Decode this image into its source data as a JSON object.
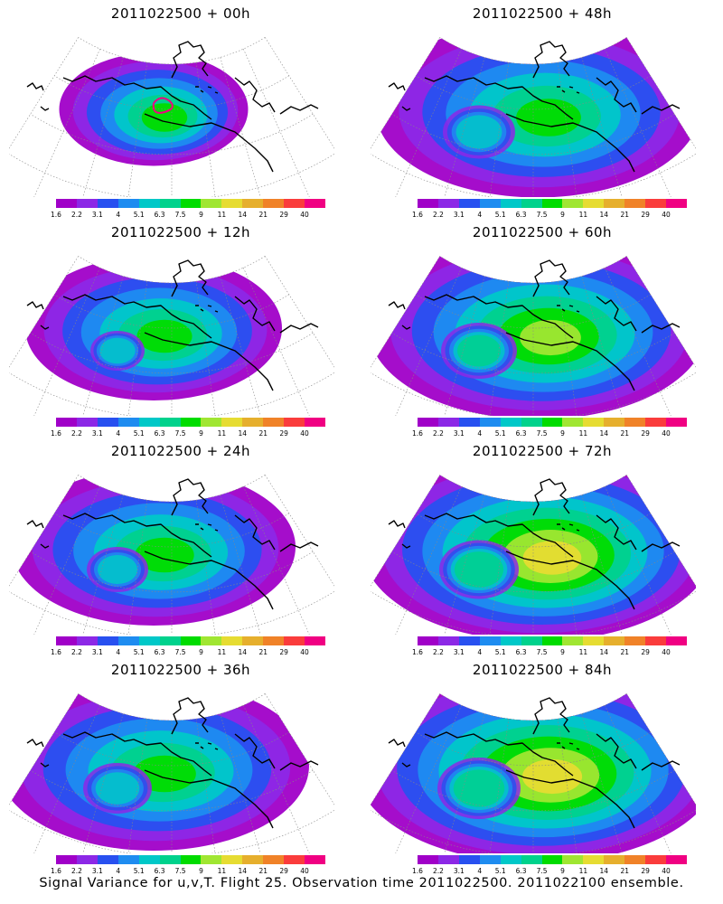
{
  "caption": "Signal Variance for u,v,T. Flight 25. Observation time 2011022500. 2011022100 ensemble.",
  "colorbar": {
    "colors": [
      "#a000c8",
      "#8c28e6",
      "#2850f0",
      "#1e8cf0",
      "#00c8c8",
      "#00d28c",
      "#00dc00",
      "#a0e632",
      "#e6dc32",
      "#e6af2d",
      "#f08228",
      "#fa3c3c",
      "#f00082"
    ],
    "ticks": [
      "1.6",
      "2.2",
      "3.1",
      "4",
      "5.1",
      "6.3",
      "7.5",
      "9",
      "11",
      "14",
      "21",
      "29",
      "40"
    ]
  },
  "panels": [
    {
      "id": "p00",
      "title": "2011022500 + 00h",
      "col": 0,
      "row": 0,
      "spread": 0.35,
      "intensity": 0.55,
      "marker": true
    },
    {
      "id": "p48",
      "title": "2011022500 + 48h",
      "col": 1,
      "row": 0,
      "spread": 0.85,
      "intensity": 0.55,
      "marker": false
    },
    {
      "id": "p12",
      "title": "2011022500 + 12h",
      "col": 0,
      "row": 1,
      "spread": 0.6,
      "intensity": 0.45,
      "marker": false
    },
    {
      "id": "p60",
      "title": "2011022500 + 60h",
      "col": 1,
      "row": 1,
      "spread": 0.9,
      "intensity": 0.6,
      "marker": false
    },
    {
      "id": "p24",
      "title": "2011022500 + 24h",
      "col": 0,
      "row": 2,
      "spread": 0.7,
      "intensity": 0.5,
      "marker": false
    },
    {
      "id": "p72",
      "title": "2011022500 + 72h",
      "col": 1,
      "row": 2,
      "spread": 0.95,
      "intensity": 0.7,
      "marker": false
    },
    {
      "id": "p36",
      "title": "2011022500 + 36h",
      "col": 0,
      "row": 3,
      "spread": 0.8,
      "intensity": 0.55,
      "marker": false
    },
    {
      "id": "p84",
      "title": "2011022500 + 84h",
      "col": 1,
      "row": 3,
      "spread": 1.0,
      "intensity": 0.8,
      "marker": false
    }
  ]
}
